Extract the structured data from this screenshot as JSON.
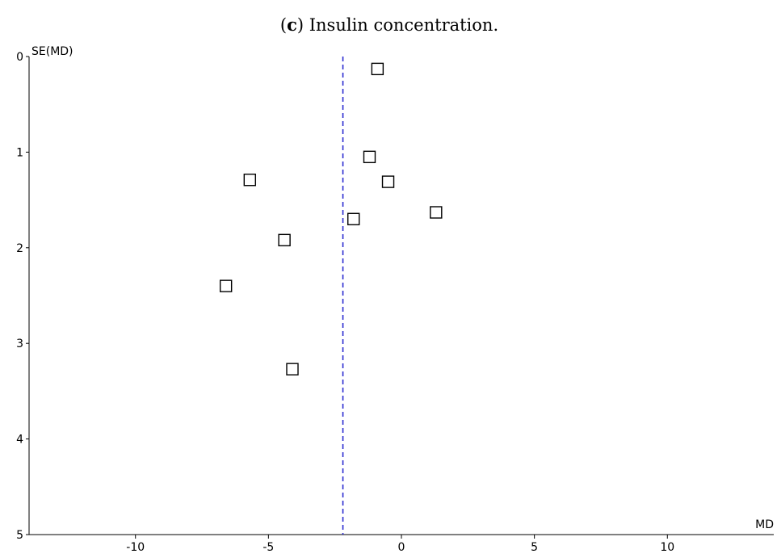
{
  "caption": {
    "open": "(",
    "letter": "c",
    "rest": ") Insulin concentration."
  },
  "chart_data": {
    "type": "scatter",
    "title": "(c) Insulin concentration.",
    "xlabel": "MD",
    "ylabel": "SE(MD)",
    "xlim": [
      -14,
      14
    ],
    "ylim": [
      0,
      5
    ],
    "y_inverted": true,
    "x_ticks": [
      -10,
      -5,
      0,
      5,
      10
    ],
    "y_ticks": [
      0,
      1,
      2,
      3,
      4,
      5
    ],
    "x_tick_labels": [
      "-10",
      "-5",
      "0",
      "5",
      "10"
    ],
    "y_tick_labels": [
      "0",
      "1",
      "2",
      "3",
      "4",
      "5"
    ],
    "reference_line_x": -2.2,
    "reference_line_color": "#2a2ad0",
    "marker": "open-square",
    "points": [
      {
        "x": -0.9,
        "y": 0.13
      },
      {
        "x": -1.2,
        "y": 1.05
      },
      {
        "x": -0.5,
        "y": 1.31
      },
      {
        "x": -5.7,
        "y": 1.29
      },
      {
        "x": -1.8,
        "y": 1.7
      },
      {
        "x": 1.3,
        "y": 1.63
      },
      {
        "x": -4.4,
        "y": 1.92
      },
      {
        "x": -6.6,
        "y": 2.4
      },
      {
        "x": -4.1,
        "y": 3.27
      }
    ],
    "grid": false
  }
}
